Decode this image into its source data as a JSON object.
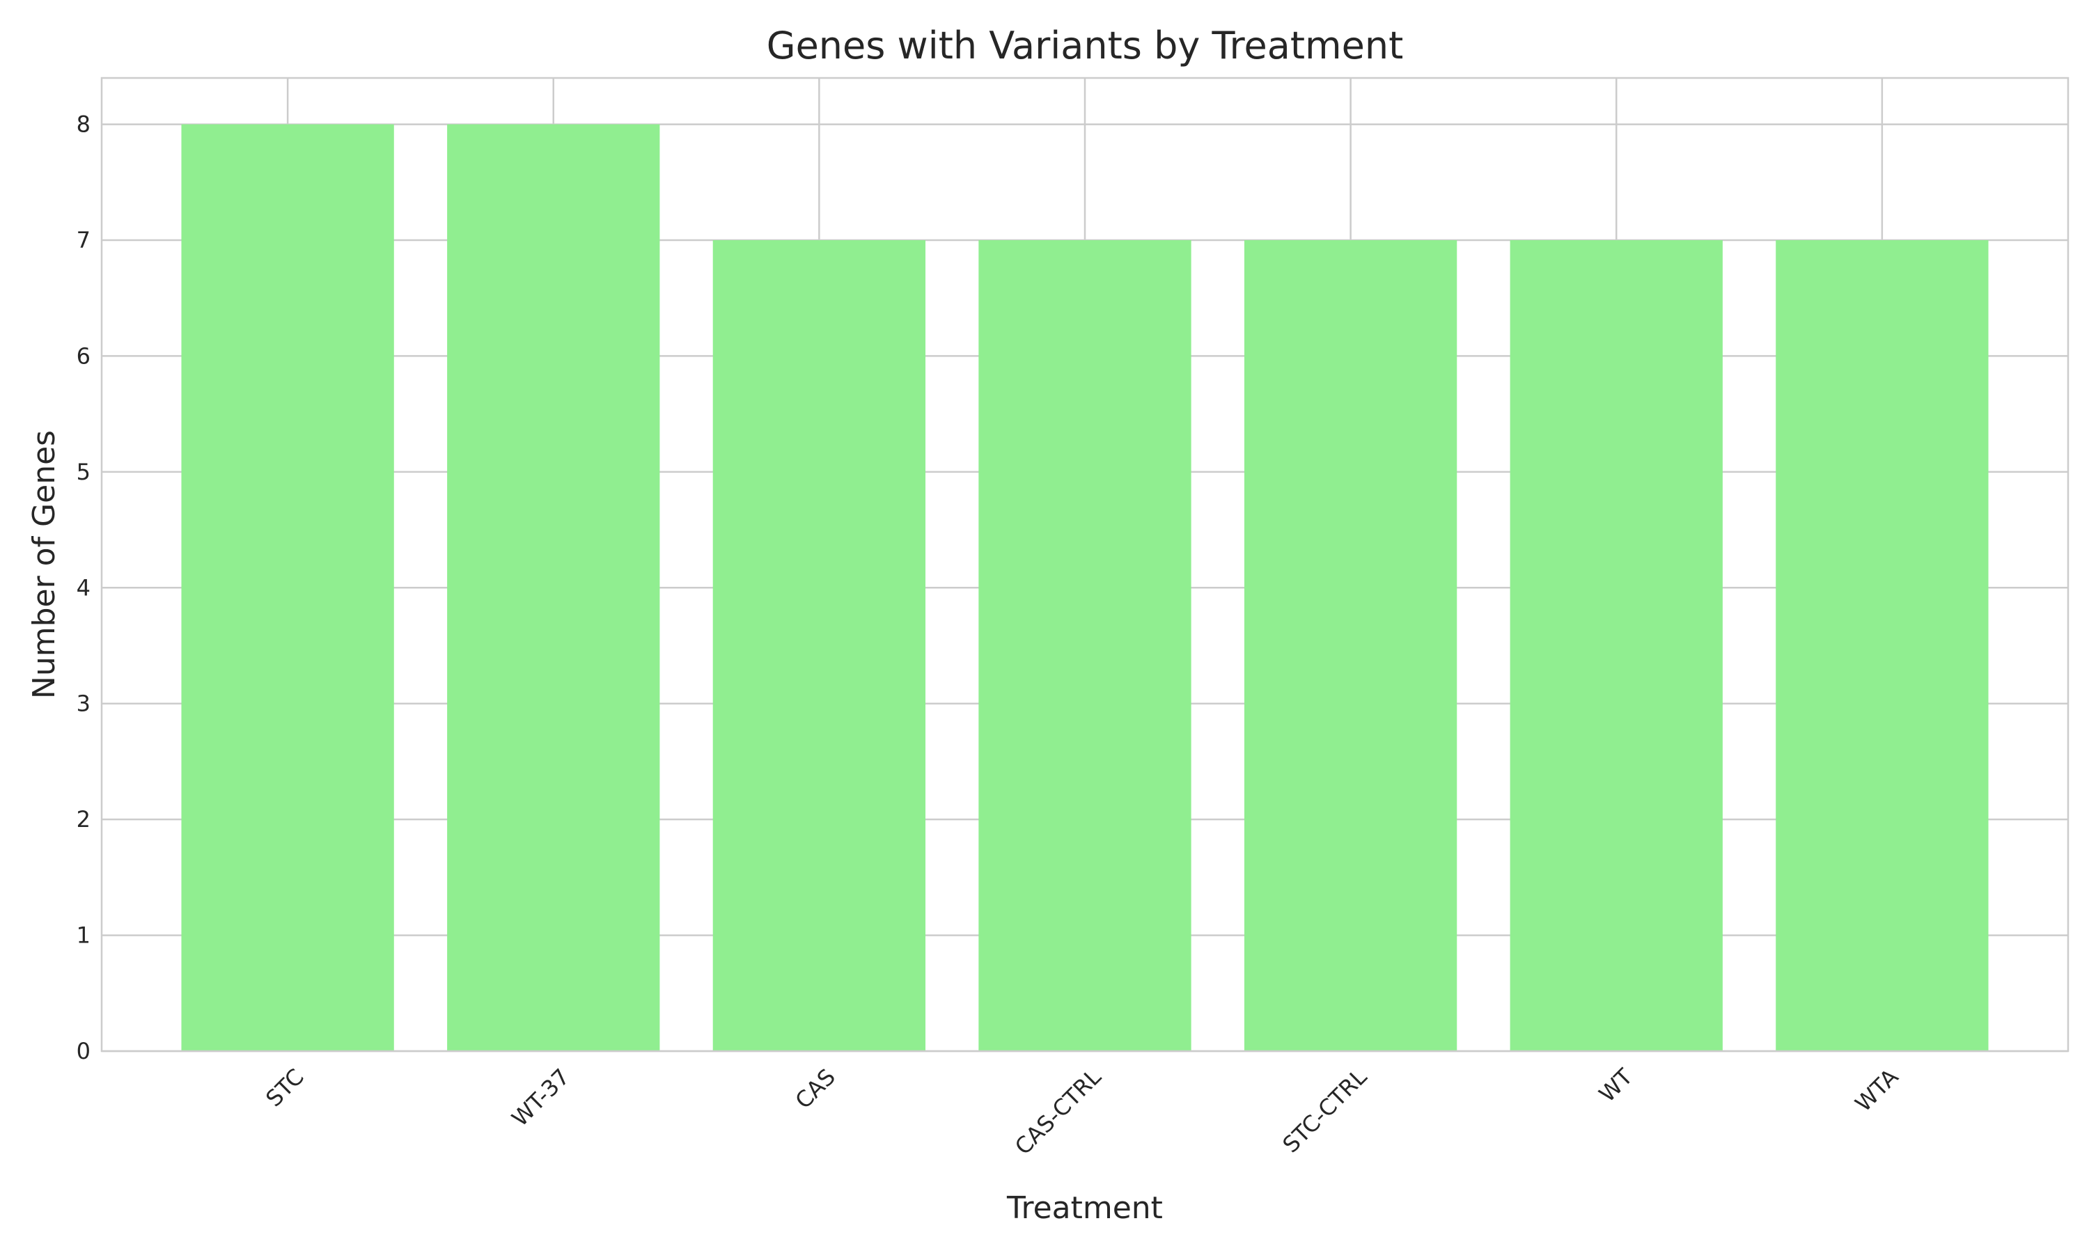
{
  "chart_data": {
    "type": "bar",
    "title": "Genes with Variants by Treatment",
    "xlabel": "Treatment",
    "ylabel": "Number of Genes",
    "categories": [
      "STC",
      "WT-37",
      "CAS",
      "CAS-CTRL",
      "STC-CTRL",
      "WT",
      "WTA"
    ],
    "values": [
      8,
      8,
      7,
      7,
      7,
      7,
      7
    ],
    "ylim": [
      0,
      8.4
    ],
    "yticks": [
      0,
      1,
      2,
      3,
      4,
      5,
      6,
      7,
      8
    ],
    "grid": true,
    "bar_color": "#90ee90",
    "grid_color": "#cccccc",
    "frame_color": "#cccccc",
    "text_color": "#262626"
  }
}
